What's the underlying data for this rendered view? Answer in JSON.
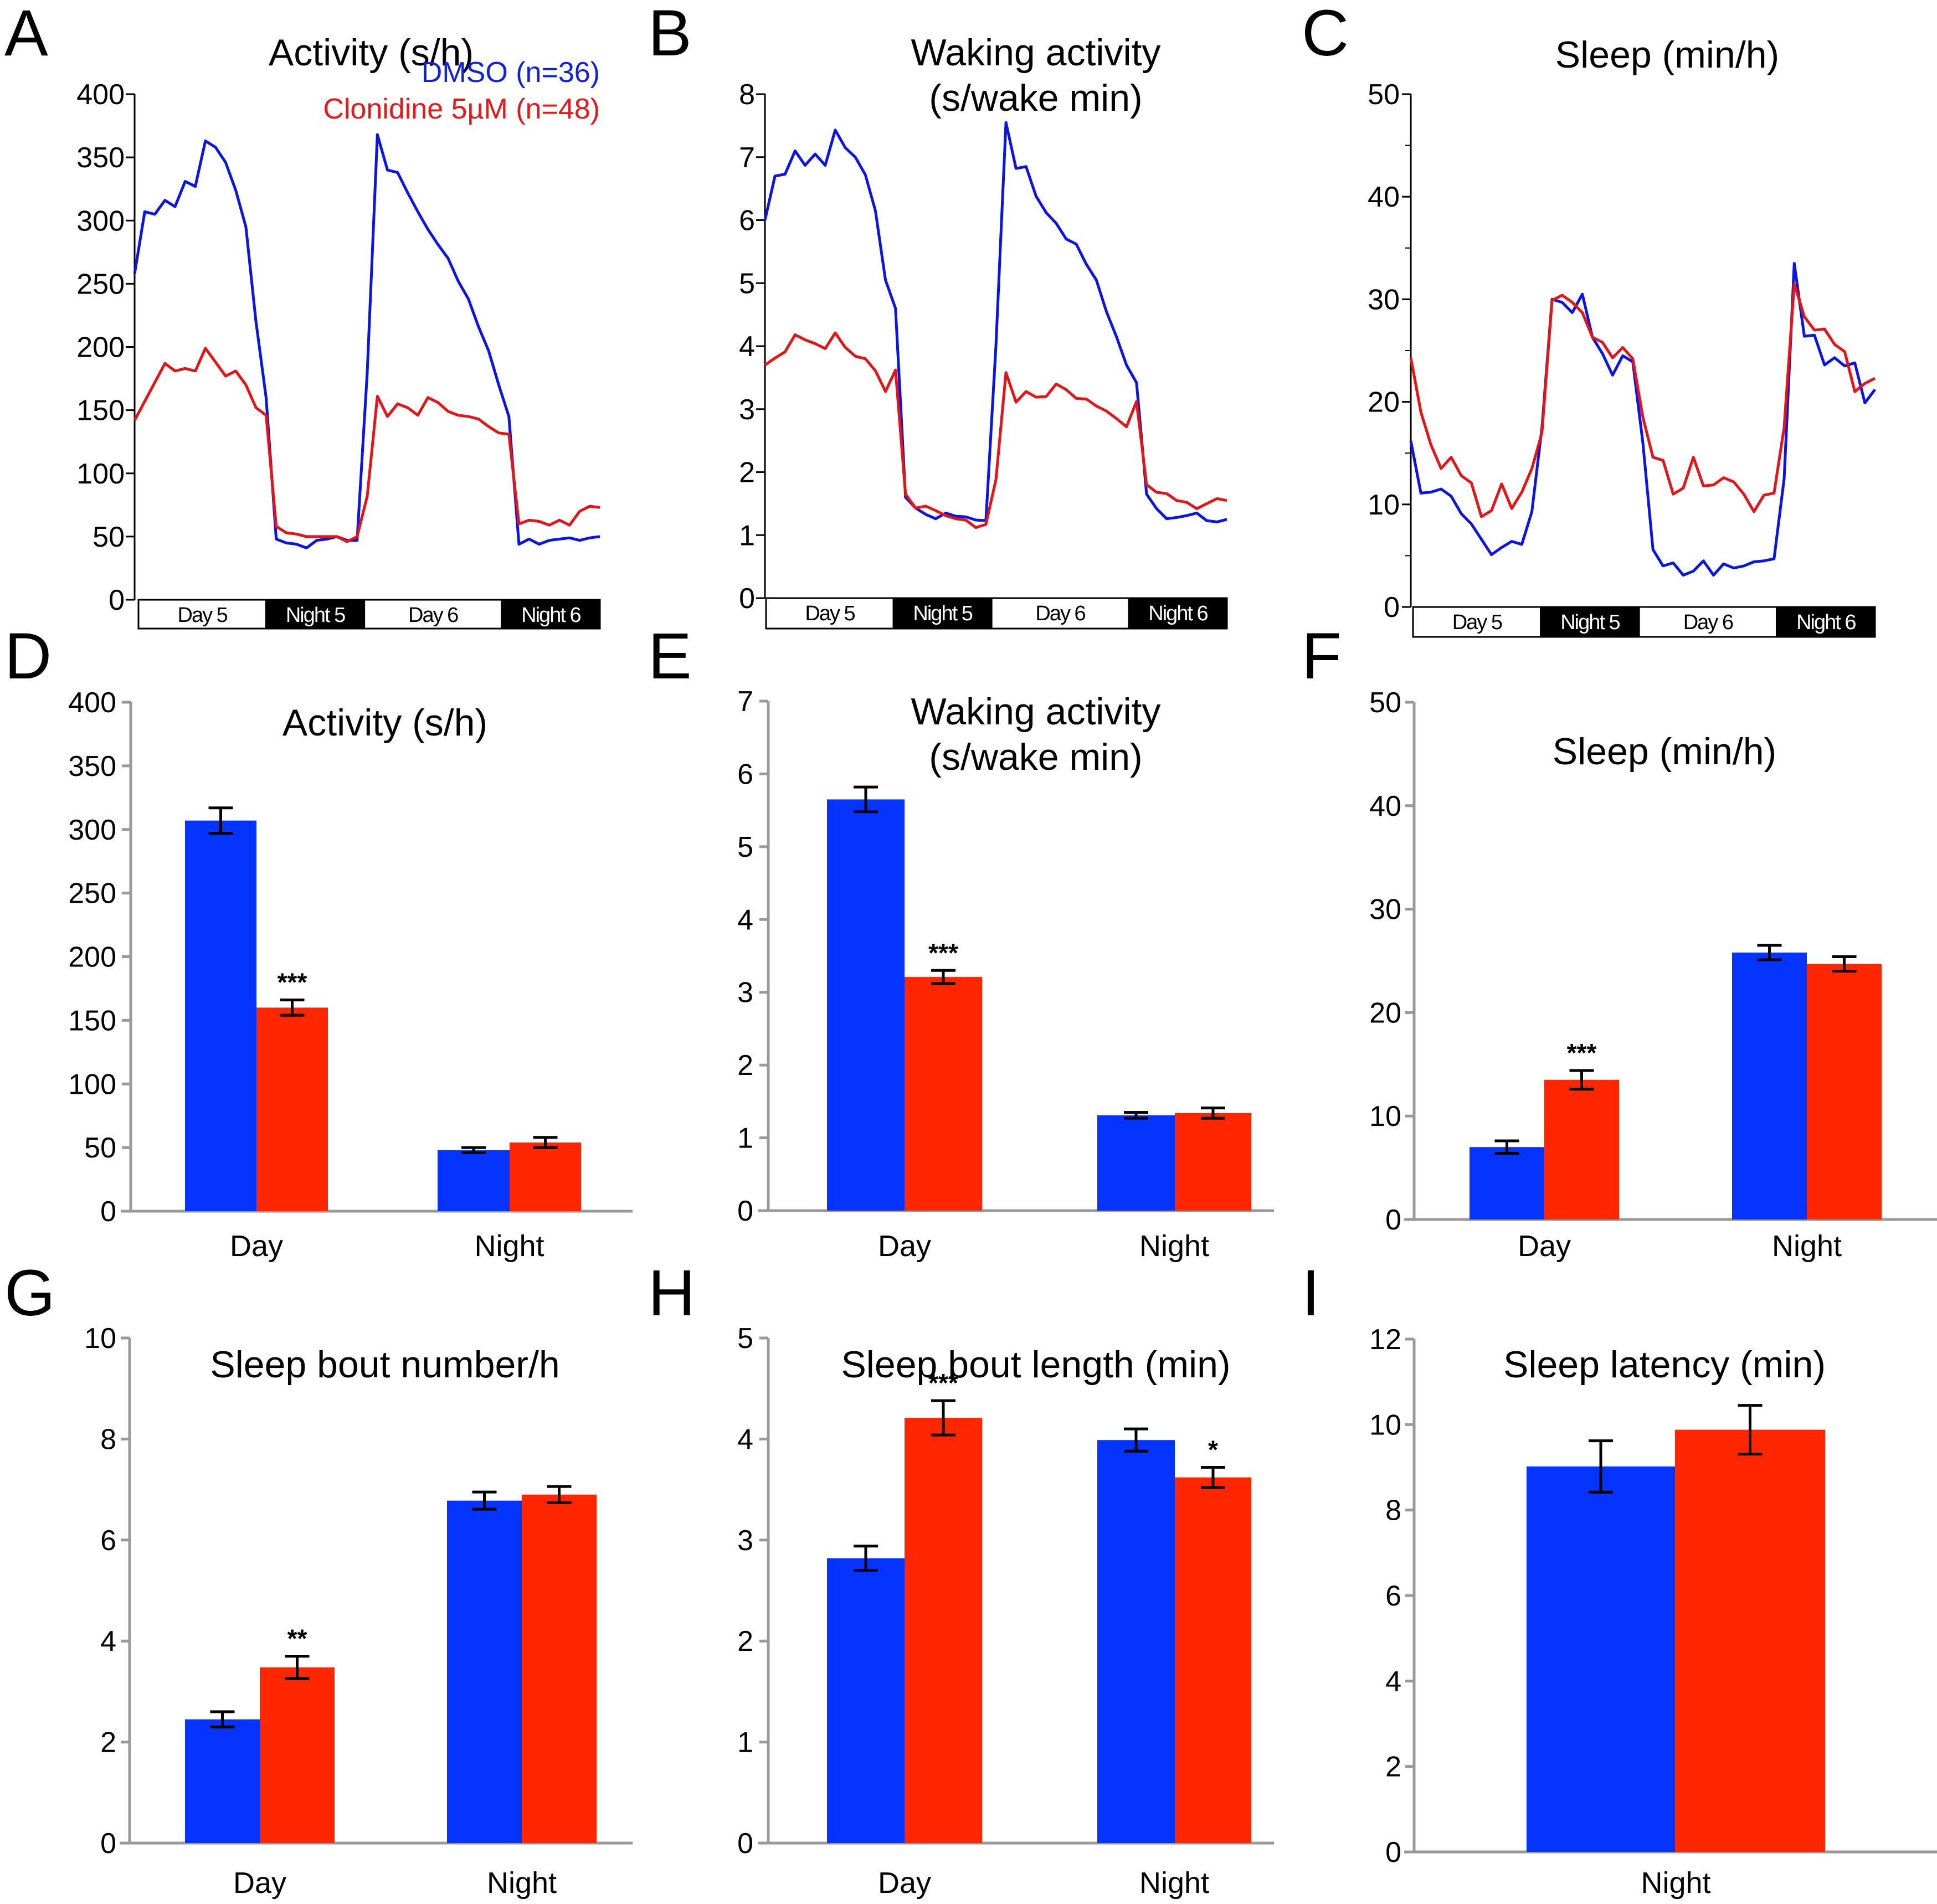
{
  "colors": {
    "dmso_line": "#0a14e6",
    "clonidine_line": "#e61414",
    "dmso_bar": "#0533ff",
    "clonidine_bar": "#ff2600",
    "axis_gray": "#999999",
    "legend_dmso": "#1020e0",
    "legend_clonidine": "#e81818"
  },
  "legend": {
    "dmso": "DMSO (n=36)",
    "clonidine": "Clonidine 5µM (n=48)"
  },
  "chart_data": [
    {
      "panel": "A",
      "type": "line",
      "title": "Activity (s/h)",
      "title_lines": [
        "Activity (s/h)"
      ],
      "ylim": [
        0,
        400
      ],
      "yticks": [
        0,
        50,
        100,
        150,
        200,
        250,
        300,
        350,
        400
      ],
      "periods": [
        {
          "label": "Day 5",
          "dark": false,
          "points": 13
        },
        {
          "label": "Night 5",
          "dark": true,
          "points": 10
        },
        {
          "label": "Day 6",
          "dark": false,
          "points": 14
        },
        {
          "label": "Night 6",
          "dark": true,
          "points": 10
        }
      ],
      "series": [
        {
          "name": "DMSO (n=36)",
          "values": [
            258,
            307,
            305,
            316,
            311,
            331,
            327,
            363,
            358,
            346,
            324,
            295,
            220,
            160,
            48,
            45,
            44,
            41,
            47,
            48,
            50,
            47,
            47,
            180,
            368,
            340,
            338,
            322,
            307,
            293,
            281,
            270,
            252,
            238,
            216,
            197,
            170,
            145,
            44,
            48,
            44,
            47,
            48,
            49,
            47,
            49,
            50
          ]
        },
        {
          "name": "Clonidine 5µM (n=48)",
          "values": [
            142,
            157,
            172,
            187,
            181,
            183,
            181,
            199,
            188,
            177,
            181,
            170,
            152,
            146,
            58,
            53,
            52,
            50,
            50,
            50,
            50,
            46,
            50,
            82,
            161,
            145,
            155,
            152,
            146,
            160,
            156,
            149,
            146,
            145,
            143,
            137,
            132,
            131,
            60,
            63,
            62,
            59,
            63,
            59,
            70,
            74,
            73
          ]
        }
      ]
    },
    {
      "panel": "B",
      "type": "line",
      "title": "Waking activity (s/wake min)",
      "title_lines": [
        "Waking activity",
        "(s/wake min)"
      ],
      "ylim": [
        0,
        8
      ],
      "yticks": [
        0,
        1,
        2,
        3,
        4,
        5,
        6,
        7,
        8
      ],
      "periods": [
        {
          "label": "Day 5",
          "dark": false,
          "points": 13
        },
        {
          "label": "Night 5",
          "dark": true,
          "points": 10
        },
        {
          "label": "Day 6",
          "dark": false,
          "points": 14
        },
        {
          "label": "Night 6",
          "dark": true,
          "points": 10
        }
      ],
      "series": [
        {
          "name": "DMSO (n=36)",
          "values": [
            6.0,
            6.7,
            6.73,
            7.1,
            6.87,
            7.05,
            6.87,
            7.43,
            7.15,
            7.0,
            6.72,
            6.15,
            5.05,
            4.6,
            1.6,
            1.43,
            1.33,
            1.26,
            1.35,
            1.3,
            1.29,
            1.24,
            1.23,
            4.0,
            7.55,
            6.82,
            6.85,
            6.38,
            6.12,
            5.95,
            5.7,
            5.62,
            5.3,
            5.05,
            4.55,
            4.15,
            3.7,
            3.42,
            1.65,
            1.42,
            1.26,
            1.28,
            1.31,
            1.35,
            1.23,
            1.21,
            1.25
          ]
        },
        {
          "name": "Clonidine 5µM (n=48)",
          "values": [
            3.7,
            3.81,
            3.91,
            4.18,
            4.1,
            4.04,
            3.96,
            4.21,
            3.98,
            3.84,
            3.8,
            3.61,
            3.28,
            3.62,
            1.65,
            1.43,
            1.46,
            1.39,
            1.31,
            1.26,
            1.24,
            1.12,
            1.17,
            1.88,
            3.58,
            3.11,
            3.28,
            3.19,
            3.2,
            3.4,
            3.31,
            3.17,
            3.16,
            3.05,
            2.97,
            2.85,
            2.72,
            3.12,
            1.8,
            1.68,
            1.66,
            1.55,
            1.52,
            1.42,
            1.5,
            1.58,
            1.55
          ]
        }
      ]
    },
    {
      "panel": "C",
      "type": "line",
      "title": "Sleep (min/h)",
      "title_lines": [
        "Sleep (min/h)"
      ],
      "ylim": [
        0,
        50
      ],
      "yticks": [
        0,
        10,
        20,
        30,
        40,
        50
      ],
      "minor_yticks": [
        5,
        15,
        25,
        35,
        45
      ],
      "periods": [
        {
          "label": "Day 5",
          "dark": false,
          "points": 13
        },
        {
          "label": "Night 5",
          "dark": true,
          "points": 10
        },
        {
          "label": "Day 6",
          "dark": false,
          "points": 14
        },
        {
          "label": "Night 6",
          "dark": true,
          "points": 10
        }
      ],
      "series": [
        {
          "name": "DMSO (n=36)",
          "values": [
            16.2,
            11.1,
            11.2,
            11.5,
            10.8,
            9.1,
            8.1,
            6.6,
            5.1,
            5.8,
            6.4,
            6.1,
            9.3,
            17.5,
            30.0,
            29.7,
            28.7,
            30.5,
            26.3,
            24.7,
            22.6,
            24.5,
            23.9,
            16.0,
            5.6,
            4.0,
            4.3,
            3.1,
            3.5,
            4.5,
            3.1,
            4.2,
            3.8,
            4.0,
            4.4,
            4.5,
            4.7,
            12.5,
            33.5,
            26.4,
            26.5,
            23.6,
            24.3,
            23.5,
            23.8,
            19.9,
            21.2
          ]
        },
        {
          "name": "Clonidine 5µM (n=48)",
          "values": [
            24.3,
            19.0,
            15.8,
            13.5,
            14.6,
            12.8,
            12.1,
            8.8,
            9.4,
            12.0,
            9.6,
            11.2,
            13.5,
            17.0,
            29.9,
            30.4,
            29.7,
            28.7,
            26.3,
            25.8,
            24.3,
            25.3,
            24.2,
            18.5,
            14.6,
            14.3,
            11.0,
            11.6,
            14.6,
            11.8,
            11.9,
            12.6,
            12.2,
            11.0,
            9.3,
            10.9,
            11.1,
            17.5,
            31.5,
            28.3,
            27.0,
            27.1,
            25.6,
            24.9,
            21.0,
            21.8,
            22.3
          ]
        }
      ]
    },
    {
      "panel": "D",
      "type": "bar",
      "title": "Activity (s/h)",
      "title_lines": [
        "Activity (s/h)"
      ],
      "ylim": [
        0,
        400
      ],
      "yticks": [
        0,
        50,
        100,
        150,
        200,
        250,
        300,
        350,
        400
      ],
      "categories": [
        "Day",
        "Night"
      ],
      "series": [
        {
          "name": "DMSO (n=36)",
          "values": [
            307,
            48
          ],
          "errors": [
            10,
            2
          ]
        },
        {
          "name": "Clonidine 5µM (n=48)",
          "values": [
            160,
            54
          ],
          "errors": [
            6,
            4
          ]
        }
      ],
      "significance": [
        {
          "category": "Day",
          "series": 1,
          "label": "***"
        }
      ]
    },
    {
      "panel": "E",
      "type": "bar",
      "title": "Waking activity (s/wake min)",
      "title_lines": [
        "Waking activity",
        "(s/wake min)"
      ],
      "ylim": [
        0,
        7
      ],
      "yticks": [
        0,
        1,
        2,
        3,
        4,
        5,
        6,
        7
      ],
      "categories": [
        "Day",
        "Night"
      ],
      "series": [
        {
          "name": "DMSO (n=36)",
          "values": [
            5.65,
            1.31
          ],
          "errors": [
            0.17,
            0.04
          ]
        },
        {
          "name": "Clonidine 5µM (n=48)",
          "values": [
            3.21,
            1.34
          ],
          "errors": [
            0.09,
            0.07
          ]
        }
      ],
      "significance": [
        {
          "category": "Day",
          "series": 1,
          "label": "***"
        }
      ]
    },
    {
      "panel": "F",
      "type": "bar",
      "title": "Sleep (min/h)",
      "title_lines": [
        "Sleep (min/h)"
      ],
      "ylim": [
        0,
        50
      ],
      "yticks": [
        0,
        10,
        20,
        30,
        40,
        50
      ],
      "categories": [
        "Day",
        "Night"
      ],
      "series": [
        {
          "name": "DMSO (n=36)",
          "values": [
            7.0,
            25.8
          ],
          "errors": [
            0.6,
            0.7
          ]
        },
        {
          "name": "Clonidine 5µM (n=48)",
          "values": [
            13.5,
            24.7
          ],
          "errors": [
            0.9,
            0.7
          ]
        }
      ],
      "significance": [
        {
          "category": "Day",
          "series": 1,
          "label": "***"
        }
      ]
    },
    {
      "panel": "G",
      "type": "bar",
      "title": "Sleep bout number/h",
      "title_lines": [
        "Sleep bout number/h"
      ],
      "ylim": [
        0,
        10
      ],
      "yticks": [
        0,
        2,
        4,
        6,
        8,
        10
      ],
      "categories": [
        "Day",
        "Night"
      ],
      "series": [
        {
          "name": "DMSO (n=36)",
          "values": [
            2.45,
            6.78
          ],
          "errors": [
            0.15,
            0.17
          ]
        },
        {
          "name": "Clonidine 5µM (n=48)",
          "values": [
            3.48,
            6.9
          ],
          "errors": [
            0.22,
            0.16
          ]
        }
      ],
      "significance": [
        {
          "category": "Day",
          "series": 1,
          "label": "**"
        }
      ]
    },
    {
      "panel": "H",
      "type": "bar",
      "title": "Sleep bout length (min)",
      "title_lines": [
        "Sleep bout length (min)"
      ],
      "ylim": [
        0,
        5
      ],
      "yticks": [
        0,
        1,
        2,
        3,
        4,
        5
      ],
      "categories": [
        "Day",
        "Night"
      ],
      "series": [
        {
          "name": "DMSO (n=36)",
          "values": [
            2.82,
            3.99
          ],
          "errors": [
            0.12,
            0.11
          ]
        },
        {
          "name": "Clonidine 5µM (n=48)",
          "values": [
            4.21,
            3.62
          ],
          "errors": [
            0.17,
            0.1
          ]
        }
      ],
      "significance": [
        {
          "category": "Day",
          "series": 1,
          "label": "***"
        },
        {
          "category": "Night",
          "series": 1,
          "label": "*"
        }
      ]
    },
    {
      "panel": "I",
      "type": "bar",
      "title": "Sleep latency (min)",
      "title_lines": [
        "Sleep latency (min)"
      ],
      "ylim": [
        0,
        12
      ],
      "yticks": [
        0,
        2,
        4,
        6,
        8,
        10,
        12
      ],
      "categories": [
        "Night"
      ],
      "series": [
        {
          "name": "DMSO (n=36)",
          "values": [
            9.02
          ],
          "errors": [
            0.6
          ]
        },
        {
          "name": "Clonidine 5µM (n=48)",
          "values": [
            9.88
          ],
          "errors": [
            0.57
          ]
        }
      ],
      "significance": []
    }
  ]
}
